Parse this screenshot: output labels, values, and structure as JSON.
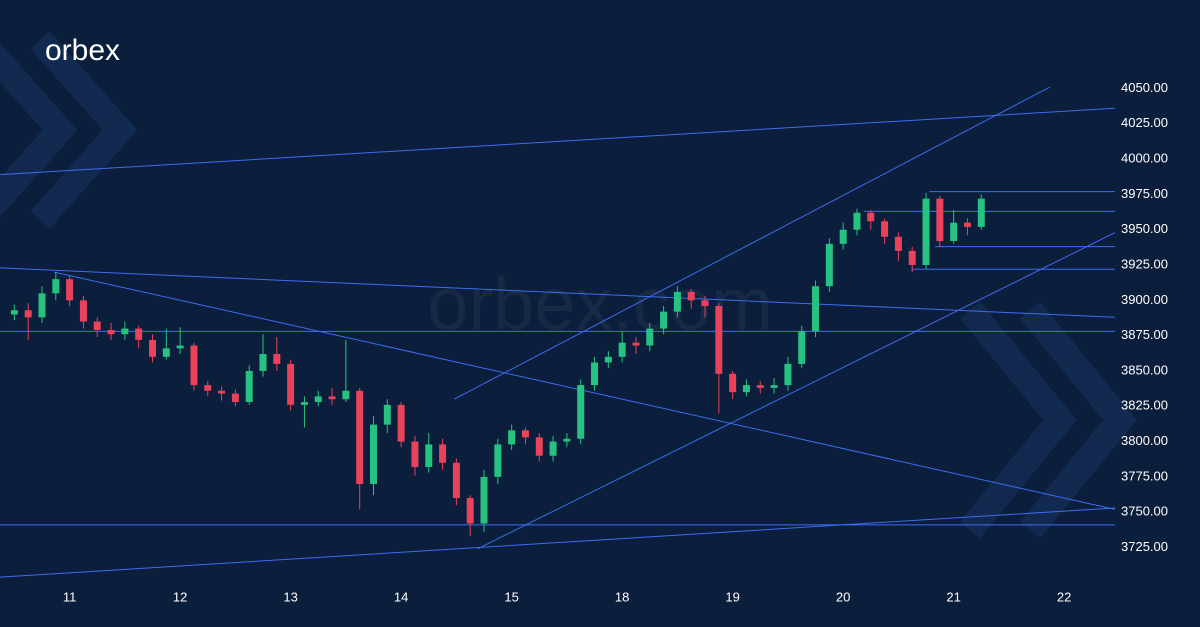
{
  "logo": "orbex",
  "chart_data": {
    "type": "candlestick",
    "watermark": "orbex.com",
    "up_color": "#26c281",
    "down_color": "#e8435a",
    "line_color": "#3d6df2",
    "xlim": [
      -0.63,
      9.46
    ],
    "ylim": [
      3702,
      4056
    ],
    "xticks": [
      {
        "value": 0,
        "label": "11"
      },
      {
        "value": 1,
        "label": "12"
      },
      {
        "value": 2,
        "label": "13"
      },
      {
        "value": 3,
        "label": "14"
      },
      {
        "value": 4,
        "label": "15"
      },
      {
        "value": 5,
        "label": "18"
      },
      {
        "value": 6,
        "label": "19"
      },
      {
        "value": 7,
        "label": "20"
      },
      {
        "value": 8,
        "label": "21"
      },
      {
        "value": 9,
        "label": "22"
      }
    ],
    "yticks": [
      {
        "value": 3725,
        "label": "3725.00"
      },
      {
        "value": 3750,
        "label": "3750.00"
      },
      {
        "value": 3775,
        "label": "3775.00"
      },
      {
        "value": 3800,
        "label": "3800.00"
      },
      {
        "value": 3825,
        "label": "3825.00"
      },
      {
        "value": 3850,
        "label": "3850.00"
      },
      {
        "value": 3875,
        "label": "3875.00"
      },
      {
        "value": 3900,
        "label": "3900.00"
      },
      {
        "value": 3925,
        "label": "3925.00"
      },
      {
        "value": 3950,
        "label": "3950.00"
      },
      {
        "value": 3975,
        "label": "3975.00"
      },
      {
        "value": 4000,
        "label": "4000.00"
      },
      {
        "value": 4025,
        "label": "4025.00"
      },
      {
        "value": 4050,
        "label": "4050.00"
      }
    ],
    "candles": {
      "x": [
        -0.5,
        -0.375,
        -0.25,
        -0.125,
        0,
        0.125,
        0.25,
        0.375,
        0.5,
        0.625,
        0.75,
        0.875,
        1,
        1.125,
        1.25,
        1.375,
        1.5,
        1.625,
        1.75,
        1.875,
        2,
        2.125,
        2.25,
        2.375,
        2.5,
        2.625,
        2.75,
        2.875,
        3,
        3.125,
        3.25,
        3.375,
        3.5,
        3.625,
        3.75,
        3.875,
        4,
        4.125,
        4.25,
        4.375,
        4.5,
        4.625,
        4.75,
        4.875,
        5,
        5.125,
        5.25,
        5.375,
        5.5,
        5.625,
        5.75,
        5.875,
        6,
        6.125,
        6.25,
        6.375,
        6.5,
        6.625,
        6.75,
        6.875,
        7,
        7.125,
        7.25,
        7.375,
        7.5,
        7.625,
        7.75,
        7.875,
        8,
        8.125,
        8.25
      ],
      "open": [
        3890,
        3893,
        3888,
        3905,
        3915,
        3900,
        3885,
        3879,
        3876,
        3880,
        3872,
        3860,
        3866,
        3868,
        3840,
        3836,
        3834,
        3828,
        3850,
        3862,
        3855,
        3826,
        3828,
        3832,
        3830,
        3836,
        3770,
        3812,
        3826,
        3800,
        3782,
        3798,
        3785,
        3760,
        3742,
        3775,
        3798,
        3808,
        3803,
        3790,
        3800,
        3802,
        3840,
        3856,
        3860,
        3870,
        3868,
        3880,
        3892,
        3906,
        3900,
        3896,
        3848,
        3835,
        3840,
        3838,
        3840,
        3855,
        3878,
        3910,
        3940,
        3950,
        3962,
        3956,
        3945,
        3935,
        3925,
        3972,
        3942,
        3955,
        3952
      ],
      "high": [
        3897,
        3898,
        3910,
        3920,
        3918,
        3903,
        3888,
        3884,
        3885,
        3882,
        3876,
        3880,
        3881,
        3870,
        3843,
        3839,
        3837,
        3854,
        3876,
        3874,
        3858,
        3832,
        3836,
        3838,
        3872,
        3838,
        3818,
        3830,
        3828,
        3804,
        3806,
        3802,
        3788,
        3762,
        3780,
        3802,
        3812,
        3810,
        3806,
        3804,
        3806,
        3844,
        3860,
        3864,
        3878,
        3874,
        3884,
        3896,
        3910,
        3908,
        3903,
        3898,
        3850,
        3844,
        3843,
        3845,
        3860,
        3882,
        3914,
        3944,
        3955,
        3965,
        3964,
        3958,
        3948,
        3938,
        3976,
        3974,
        3964,
        3958,
        3975
      ],
      "low": [
        3886,
        3872,
        3884,
        3900,
        3896,
        3880,
        3874,
        3872,
        3872,
        3866,
        3856,
        3858,
        3862,
        3836,
        3832,
        3829,
        3825,
        3826,
        3846,
        3850,
        3822,
        3810,
        3825,
        3826,
        3828,
        3752,
        3762,
        3806,
        3796,
        3776,
        3778,
        3780,
        3755,
        3733,
        3736,
        3770,
        3794,
        3798,
        3786,
        3786,
        3796,
        3798,
        3836,
        3852,
        3856,
        3862,
        3864,
        3876,
        3888,
        3894,
        3888,
        3820,
        3830,
        3832,
        3834,
        3834,
        3836,
        3852,
        3874,
        3906,
        3936,
        3946,
        3950,
        3940,
        3928,
        3920,
        3922,
        3938,
        3940,
        3946,
        3950
      ],
      "close": [
        3893,
        3888,
        3905,
        3915,
        3900,
        3885,
        3879,
        3876,
        3880,
        3872,
        3860,
        3866,
        3868,
        3840,
        3836,
        3834,
        3828,
        3850,
        3862,
        3855,
        3826,
        3828,
        3832,
        3830,
        3836,
        3770,
        3812,
        3826,
        3800,
        3782,
        3798,
        3785,
        3760,
        3742,
        3775,
        3798,
        3808,
        3803,
        3790,
        3800,
        3802,
        3840,
        3856,
        3860,
        3870,
        3868,
        3880,
        3892,
        3906,
        3900,
        3896,
        3848,
        3835,
        3840,
        3838,
        3840,
        3855,
        3878,
        3910,
        3940,
        3950,
        3962,
        3956,
        3945,
        3935,
        3925,
        3972,
        3942,
        3955,
        3952,
        3972
      ]
    },
    "lines": [
      {
        "x": [
          -0.63,
          9.46
        ],
        "y": [
          3989,
          4036
        ]
      },
      {
        "x": [
          3.48,
          8.87
        ],
        "y": [
          3830,
          4051
        ]
      },
      {
        "x": [
          3.69,
          9.46
        ],
        "y": [
          3724,
          3948
        ]
      },
      {
        "x": [
          -0.63,
          9.46
        ],
        "y": [
          3704,
          3753
        ]
      },
      {
        "x": [
          -0.63,
          9.46
        ],
        "y": [
          3923,
          3888
        ]
      },
      {
        "x": [
          -0.14,
          9.46
        ],
        "y": [
          3920,
          3752
        ]
      },
      {
        "x": [
          -0.63,
          9.46
        ],
        "y": [
          3878,
          3878
        ]
      },
      {
        "x": [
          -0.63,
          9.46
        ],
        "y": [
          3741,
          3741
        ]
      },
      {
        "x": [
          7.78,
          9.46
        ],
        "y": [
          3977,
          3977
        ]
      },
      {
        "x": [
          7.19,
          9.46
        ],
        "y": [
          3963,
          3963
        ]
      },
      {
        "x": [
          7.83,
          9.46
        ],
        "y": [
          3938,
          3938
        ]
      },
      {
        "x": [
          7.62,
          9.46
        ],
        "y": [
          3922,
          3922
        ]
      }
    ]
  }
}
